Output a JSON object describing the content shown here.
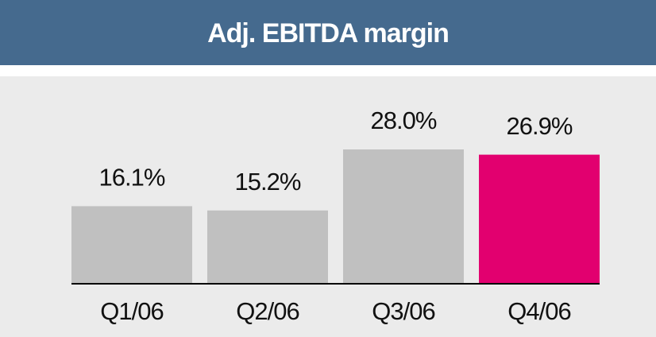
{
  "chart_data": {
    "type": "bar",
    "title": "Adj. EBITDA margin",
    "categories": [
      "Q1/06",
      "Q2/06",
      "Q3/06",
      "Q4/06"
    ],
    "values": [
      16.1,
      15.2,
      28.0,
      26.9
    ],
    "value_labels": [
      "16.1%",
      "15.2%",
      "28.0%",
      "26.9%"
    ],
    "colors": [
      "#c0c0c0",
      "#c0c0c0",
      "#c0c0c0",
      "#e2006f"
    ]
  }
}
